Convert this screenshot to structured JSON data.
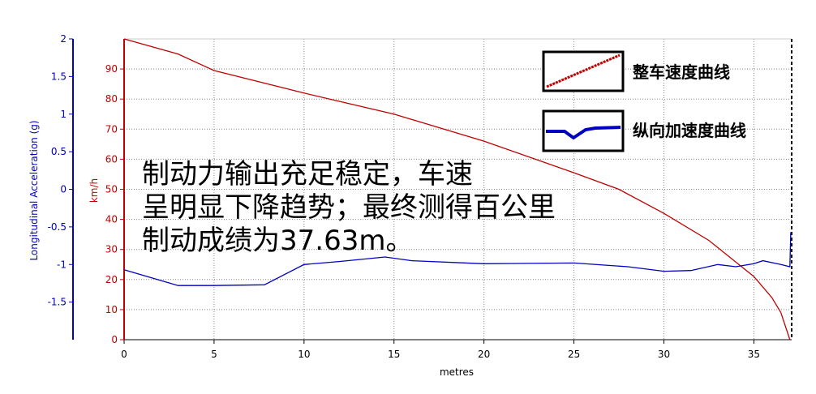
{
  "chart_data": {
    "type": "line",
    "xlabel": "metres",
    "ylabel": "Longitudinal Acceleration (g)",
    "y2label": "km/h",
    "xlim": [
      0,
      37.1
    ],
    "xticks": [
      0,
      5,
      10,
      15,
      20,
      25,
      30,
      35
    ],
    "ylim": [
      -2,
      2
    ],
    "yticks": [
      -1.5,
      -1,
      -0.5,
      0,
      0.5,
      1,
      1.5,
      2
    ],
    "y2lim": [
      0,
      100
    ],
    "y2ticks": [
      0,
      10,
      20,
      30,
      40,
      50,
      60,
      70,
      80,
      90
    ],
    "grid": true,
    "series": [
      {
        "name": "整车速度曲线",
        "color": "#c00000",
        "axis": "y2",
        "x": [
          0,
          3,
          5,
          10,
          15,
          20,
          25,
          27.5,
          30,
          32.5,
          35,
          36,
          36.5,
          37
        ],
        "values": [
          100,
          95,
          89.5,
          82,
          75,
          66,
          55.5,
          50,
          42,
          33,
          21,
          14,
          9,
          0
        ]
      },
      {
        "name": "纵向加速度曲线",
        "color": "#0000c0",
        "axis": "y",
        "x": [
          0,
          3,
          5,
          7.8,
          10,
          12,
          14.5,
          16,
          20,
          25,
          28,
          30,
          31.5,
          33,
          34,
          35,
          35.5,
          36.5,
          37,
          37.05
        ],
        "values": [
          -1.07,
          -1.28,
          -1.28,
          -1.27,
          -1.0,
          -0.96,
          -0.9,
          -0.95,
          -0.99,
          -0.98,
          -1.03,
          -1.09,
          -1.08,
          -1.0,
          -1.03,
          -0.99,
          -0.95,
          -1.0,
          -1.03,
          -0.57
        ]
      }
    ],
    "annotation": [
      "制动力输出充足稳定，车速",
      "呈明显下降趋势；最终测得百公里",
      "制动成绩为37.63m。"
    ]
  }
}
